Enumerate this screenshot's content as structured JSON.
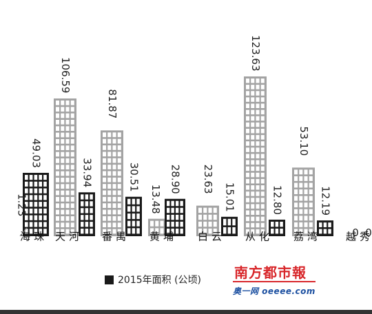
{
  "chart_data": {
    "type": "bar",
    "categories": [
      "海珠",
      "天河",
      "番禺",
      "黄埔",
      "白云",
      "从化",
      "荔湾",
      "越秀"
    ],
    "series": [
      {
        "values": [
          1.23,
          106.59,
          81.87,
          13.48,
          23.63,
          123.63,
          53.1,
          0
        ]
      },
      {
        "name": "2015年面积（公顷）",
        "values": [
          49.03,
          33.94,
          30.51,
          28.9,
          15.01,
          12.8,
          12.19,
          0
        ]
      }
    ],
    "labels": [
      [
        "1.23",
        "106.59",
        "81.87",
        "13.48",
        "23.63",
        "123.63",
        "53.10",
        "0"
      ],
      [
        "49.03",
        "33.94",
        "30.51",
        "28.90",
        "15.01",
        "12.80",
        "12.19",
        "0"
      ]
    ],
    "ylim": [
      0,
      123.63
    ],
    "colors": {
      "gray": "#a3a3a3",
      "black": "#1a1a1a"
    }
  },
  "legend": {
    "label": "2015年面积 (公顷)"
  },
  "logo": {
    "main": "南方都市報",
    "sub": "奥一网 oeeee.com"
  }
}
